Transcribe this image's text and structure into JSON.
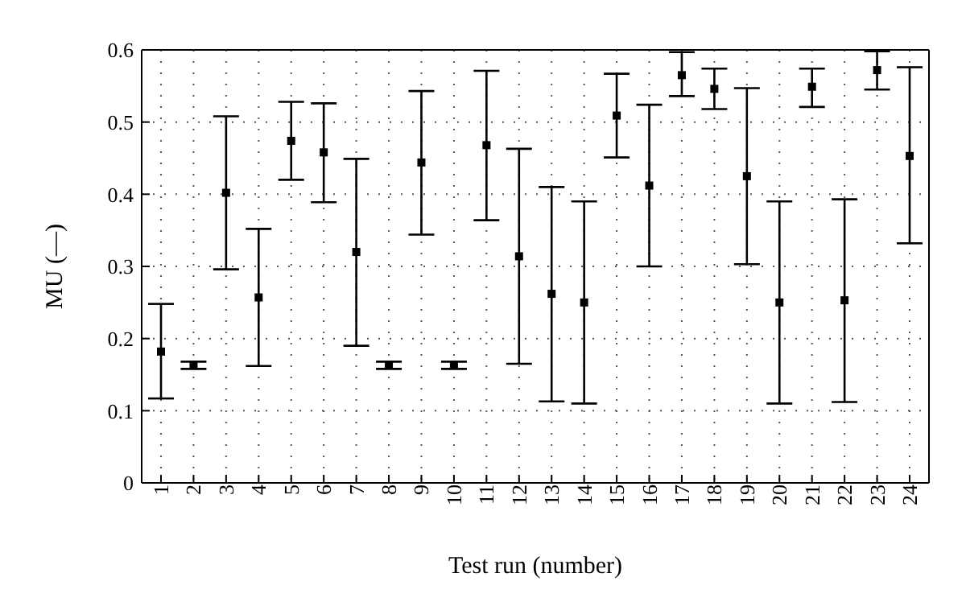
{
  "chart_data": {
    "type": "scatter",
    "xlabel": "Test run (number)",
    "ylabel": "MU (—)",
    "categories": [
      "1",
      "2",
      "3",
      "4",
      "5",
      "6",
      "7",
      "8",
      "9",
      "10",
      "11",
      "12",
      "13",
      "14",
      "15",
      "16",
      "17",
      "18",
      "19",
      "20",
      "21",
      "22",
      "23",
      "24"
    ],
    "values": [
      0.182,
      0.163,
      0.402,
      0.257,
      0.474,
      0.458,
      0.32,
      0.163,
      0.444,
      0.163,
      0.468,
      0.314,
      0.262,
      0.25,
      0.509,
      0.412,
      0.565,
      0.546,
      0.425,
      0.25,
      0.549,
      0.253,
      0.572,
      0.453
    ],
    "errors": [
      [
        0.117,
        0.248
      ],
      [
        0.158,
        0.168
      ],
      [
        0.296,
        0.508
      ],
      [
        0.162,
        0.352
      ],
      [
        0.42,
        0.528
      ],
      [
        0.389,
        0.526
      ],
      [
        0.19,
        0.449
      ],
      [
        0.158,
        0.168
      ],
      [
        0.344,
        0.543
      ],
      [
        0.158,
        0.168
      ],
      [
        0.364,
        0.571
      ],
      [
        0.165,
        0.463
      ],
      [
        0.113,
        0.41
      ],
      [
        0.11,
        0.39
      ],
      [
        0.451,
        0.567
      ],
      [
        0.3,
        0.524
      ],
      [
        0.536,
        0.597
      ],
      [
        0.518,
        0.574
      ],
      [
        0.303,
        0.547
      ],
      [
        0.11,
        0.39
      ],
      [
        0.521,
        0.574
      ],
      [
        0.112,
        0.393
      ],
      [
        0.545,
        0.598
      ],
      [
        0.332,
        0.576
      ]
    ],
    "color": "#000000",
    "marker": "square",
    "ylim": [
      0,
      0.6
    ],
    "yticks": [
      0,
      0.1,
      0.2,
      0.3,
      0.4,
      0.5,
      0.6
    ],
    "grid": true
  }
}
